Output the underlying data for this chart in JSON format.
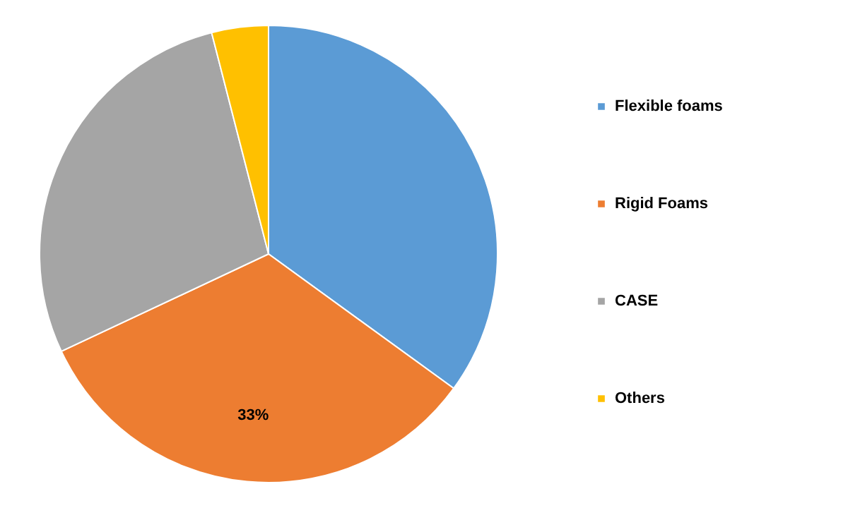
{
  "chart_data": {
    "type": "pie",
    "categories": [
      "Flexible foams",
      "Rigid Foams",
      "CASE",
      "Others"
    ],
    "values": [
      35,
      33,
      28,
      4
    ],
    "colors": [
      "#5b9bd5",
      "#ed7d31",
      "#a5a5a5",
      "#ffc000"
    ],
    "value_labels": [
      null,
      "33%",
      null,
      null
    ],
    "legend": "right"
  }
}
